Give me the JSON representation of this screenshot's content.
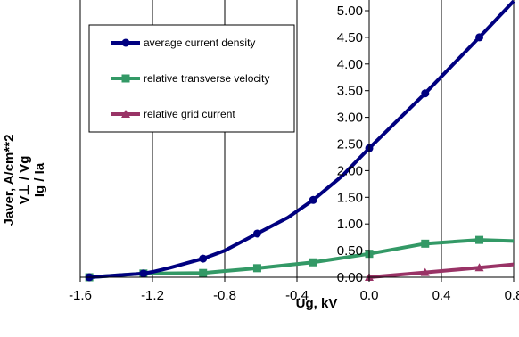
{
  "chart_data": {
    "type": "line",
    "xlabel": "Ug, kV",
    "ylabel_lines": [
      "Javer, A/cm**2",
      "V⊥ / Vg",
      "Ig / Ia"
    ],
    "xlim": [
      -1.6,
      0.8
    ],
    "ylim": [
      0,
      5
    ],
    "x_ticks": [
      "-1.6",
      "-1.2",
      "-0.8",
      "-0.4",
      "0.0",
      "0.4",
      "0.8"
    ],
    "x_tick_values": [
      -1.6,
      -1.2,
      -0.8,
      -0.4,
      0.0,
      0.4,
      0.8
    ],
    "y_ticks": [
      "0.00",
      "0.50",
      "1.00",
      "1.50",
      "2.00",
      "2.50",
      "3.00",
      "3.50",
      "4.00",
      "4.50",
      "5.00"
    ],
    "y_tick_values": [
      0,
      0.5,
      1.0,
      1.5,
      2.0,
      2.5,
      3.0,
      3.5,
      4.0,
      4.5,
      5.0
    ],
    "grid": "vertical",
    "legend_position": "top-left",
    "series": [
      {
        "name": "average current density",
        "color": "#000080",
        "marker": "circle",
        "x": [
          -1.55,
          -1.25,
          -0.92,
          -0.62,
          -0.31,
          0.0,
          0.31,
          0.61
        ],
        "y": [
          0.0,
          0.07,
          0.35,
          0.82,
          1.45,
          2.42,
          3.45,
          4.5
        ],
        "line_x": [
          -1.55,
          -1.25,
          -1.2,
          -1.1,
          -0.92,
          -0.8,
          -0.62,
          -0.45,
          -0.31,
          -0.15,
          0.0,
          0.31,
          0.61,
          0.8
        ],
        "line_y": [
          0.0,
          0.07,
          0.1,
          0.18,
          0.35,
          0.5,
          0.82,
          1.12,
          1.45,
          1.9,
          2.42,
          3.45,
          4.5,
          5.18
        ]
      },
      {
        "name": "relative transverse velocity",
        "color": "#339966",
        "marker": "square",
        "x": [
          -1.55,
          -1.25,
          -0.92,
          -0.62,
          -0.31,
          0.0,
          0.31,
          0.61
        ],
        "y": [
          0.0,
          0.07,
          0.08,
          0.17,
          0.28,
          0.44,
          0.63,
          0.7
        ],
        "line_x": [
          -1.55,
          -1.25,
          -0.92,
          -0.62,
          -0.31,
          0.0,
          0.31,
          0.61,
          0.8
        ],
        "line_y": [
          0.0,
          0.07,
          0.08,
          0.17,
          0.28,
          0.44,
          0.63,
          0.7,
          0.68
        ]
      },
      {
        "name": "relative grid current",
        "color": "#993366",
        "marker": "triangle",
        "x": [
          0.0,
          0.31,
          0.61
        ],
        "y": [
          0.0,
          0.09,
          0.18
        ],
        "line_x": [
          0.0,
          0.31,
          0.61,
          0.8
        ],
        "line_y": [
          0.0,
          0.09,
          0.18,
          0.24
        ]
      }
    ]
  }
}
